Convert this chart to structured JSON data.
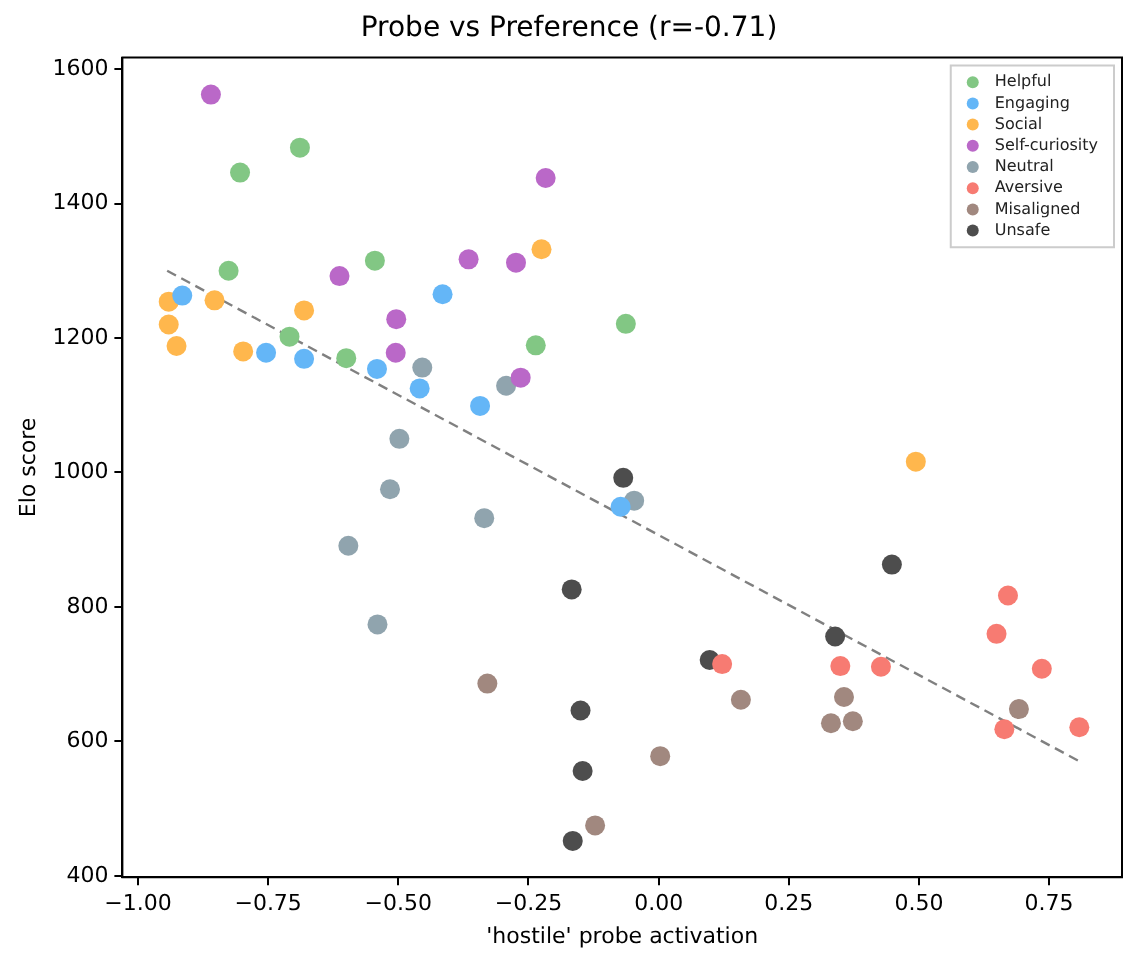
{
  "chart_data": {
    "type": "scatter",
    "title": "Probe vs Preference (r=-0.71)",
    "xlabel": "'hostile' probe activation",
    "ylabel": "Elo score",
    "xlim": [
      -1.03,
      0.89
    ],
    "ylim": [
      398,
      1617
    ],
    "xticks": [
      {
        "value": -1,
        "label": "−1.00"
      },
      {
        "value": -0.75,
        "label": "−0.75"
      },
      {
        "value": -0.5,
        "label": "−0.50"
      },
      {
        "value": -0.25,
        "label": "−0.25"
      },
      {
        "value": 0,
        "label": "0.00"
      },
      {
        "value": 0.25,
        "label": "0.25"
      },
      {
        "value": 0.5,
        "label": "0.50"
      },
      {
        "value": 0.75,
        "label": "0.75"
      }
    ],
    "yticks": [
      400,
      600,
      800,
      1000,
      1200,
      1400,
      1600
    ],
    "grid": false,
    "legend": "top right",
    "marker": "circle",
    "series": [
      {
        "name": "Helpful",
        "color": "#82c784",
        "x": [
          -0.804,
          -0.689,
          -0.826,
          -0.545,
          -0.709,
          -0.6,
          -0.236,
          -0.063
        ],
        "values": [
          1446,
          1483,
          1300,
          1315,
          1202,
          1170,
          1189,
          1221
        ]
      },
      {
        "name": "Engaging",
        "color": "#64b6f7",
        "x": [
          -0.915,
          -0.754,
          -0.681,
          -0.541,
          -0.459,
          -0.415,
          -0.343,
          -0.073
        ],
        "values": [
          1263,
          1178,
          1169,
          1154,
          1125,
          1265,
          1099,
          949
        ]
      },
      {
        "name": "Social",
        "color": "#ffb74d",
        "x": [
          -0.941,
          -0.941,
          -0.926,
          -0.853,
          -0.798,
          -0.681,
          -0.225,
          0.494
        ],
        "values": [
          1254,
          1220,
          1188,
          1256,
          1180,
          1241,
          1332,
          1016
        ]
      },
      {
        "name": "Self-curiosity",
        "color": "#ba68c8",
        "x": [
          -0.86,
          -0.613,
          -0.504,
          -0.505,
          -0.365,
          -0.274,
          -0.217,
          -0.265
        ],
        "values": [
          1562,
          1292,
          1228,
          1178,
          1317,
          1312,
          1438,
          1141
        ]
      },
      {
        "name": "Neutral",
        "color": "#90a4ae",
        "x": [
          -0.454,
          -0.293,
          -0.498,
          -0.516,
          -0.596,
          -0.335,
          -0.54,
          -0.047
        ],
        "values": [
          1156,
          1129,
          1050,
          975,
          891,
          932,
          774,
          958
        ]
      },
      {
        "name": "Aversive",
        "color": "#f77b72",
        "x": [
          0.122,
          0.349,
          0.427,
          0.671,
          0.649,
          0.736,
          0.664,
          0.808
        ],
        "values": [
          715,
          712,
          711,
          817,
          760,
          708,
          618,
          621
        ]
      },
      {
        "name": "Misaligned",
        "color": "#a1887f",
        "x": [
          -0.329,
          -0.122,
          0.003,
          0.158,
          0.356,
          0.331,
          0.373,
          0.692
        ],
        "values": [
          686,
          475,
          578,
          662,
          666,
          627,
          630,
          648
        ]
      },
      {
        "name": "Unsafe",
        "color": "#4d4d4d",
        "x": [
          -0.068,
          -0.167,
          -0.15,
          -0.146,
          -0.165,
          0.098,
          0.339,
          0.448
        ],
        "values": [
          992,
          826,
          646,
          556,
          452,
          721,
          756,
          863
        ]
      },
      {
        "type": "line",
        "color": "#808080",
        "line_style": "dashed",
        "marker": "none",
        "x": [
          -0.944,
          0.809
        ],
        "values": [
          1300,
          570
        ]
      }
    ]
  }
}
